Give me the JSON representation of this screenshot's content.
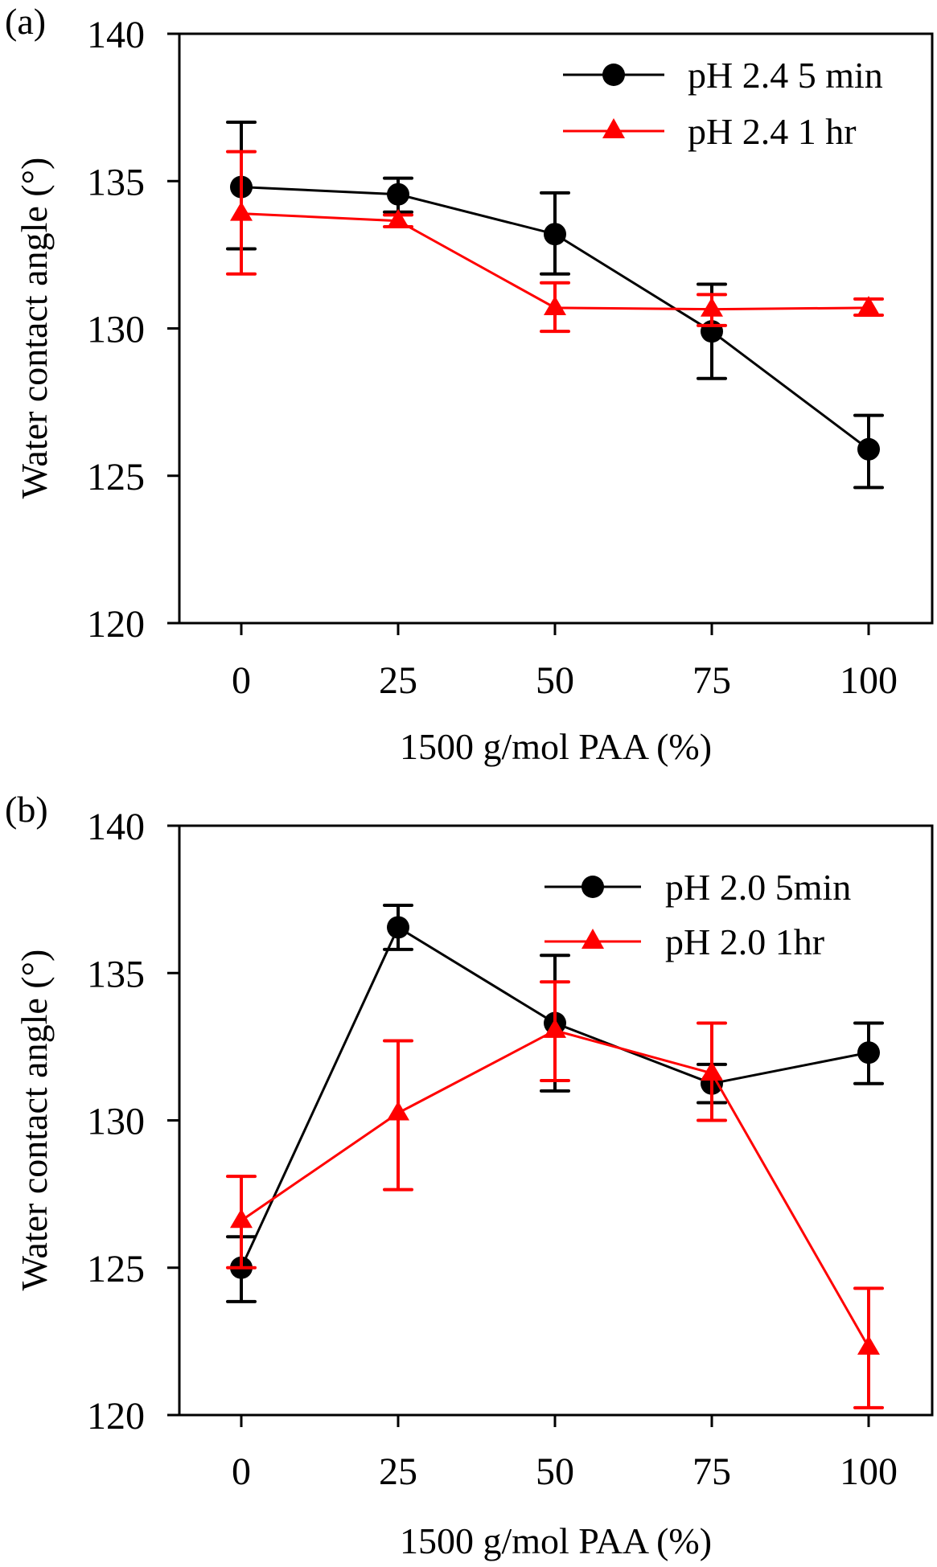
{
  "figure": {
    "colors": {
      "series_black": "#000000",
      "series_red": "#ff0000",
      "axis": "#000000",
      "background": "#ffffff"
    }
  },
  "chart_data": [
    {
      "type": "line",
      "panel_label": "(a)",
      "title": "",
      "xlabel": "1500 g/mol PAA (%)",
      "ylabel": "Water contact angle (°)",
      "x": [
        0,
        25,
        50,
        75,
        100
      ],
      "x_tick_labels": [
        "0",
        "25",
        "50",
        "75",
        "100"
      ],
      "y_ticks": [
        120,
        125,
        130,
        135,
        140
      ],
      "y_tick_labels": [
        "120",
        "125",
        "130",
        "135",
        "140"
      ],
      "xlim": [
        -12.5,
        112.5
      ],
      "ylim": [
        120,
        140
      ],
      "grid": false,
      "legend_position": "top-right",
      "series": [
        {
          "name": "pH 2.4 5 min",
          "color": "#000000",
          "marker": "circle",
          "values": [
            134.8,
            134.55,
            133.2,
            129.9,
            125.9
          ],
          "error_upper": [
            137.0,
            135.1,
            134.6,
            131.5,
            127.05
          ],
          "error_lower": [
            132.7,
            133.95,
            131.85,
            128.3,
            124.6
          ]
        },
        {
          "name": "pH 2.4 1 hr",
          "color": "#ff0000",
          "marker": "triangle",
          "values": [
            133.9,
            133.65,
            130.7,
            130.65,
            130.7
          ],
          "error_upper": [
            136.0,
            133.85,
            131.55,
            131.15,
            131.0
          ],
          "error_lower": [
            131.85,
            133.45,
            129.9,
            130.1,
            130.45
          ]
        }
      ]
    },
    {
      "type": "line",
      "panel_label": "(b)",
      "title": "",
      "xlabel": "1500 g/mol PAA (%)",
      "ylabel": "Water contact angle (°)",
      "x": [
        0,
        25,
        50,
        75,
        100
      ],
      "x_tick_labels": [
        "0",
        "25",
        "50",
        "75",
        "100"
      ],
      "y_ticks": [
        120,
        125,
        130,
        135,
        140
      ],
      "y_tick_labels": [
        "120",
        "125",
        "130",
        "135",
        "140"
      ],
      "xlim": [
        -12.5,
        112.5
      ],
      "ylim": [
        120,
        140
      ],
      "grid": false,
      "legend_position": "top-right",
      "series": [
        {
          "name": "pH 2.0 5min",
          "color": "#000000",
          "marker": "circle",
          "values": [
            125.0,
            136.55,
            133.3,
            131.25,
            132.3
          ],
          "error_upper": [
            126.05,
            137.3,
            135.6,
            131.9,
            133.3
          ],
          "error_lower": [
            123.85,
            135.8,
            131.0,
            130.6,
            131.25
          ]
        },
        {
          "name": "pH 2.0 1hr",
          "color": "#ff0000",
          "marker": "triangle",
          "values": [
            126.6,
            130.25,
            133.05,
            131.6,
            122.3
          ],
          "error_upper": [
            128.1,
            132.7,
            134.7,
            133.3,
            124.3
          ],
          "error_lower": [
            125.0,
            127.65,
            131.35,
            130.0,
            120.25
          ]
        }
      ]
    }
  ]
}
